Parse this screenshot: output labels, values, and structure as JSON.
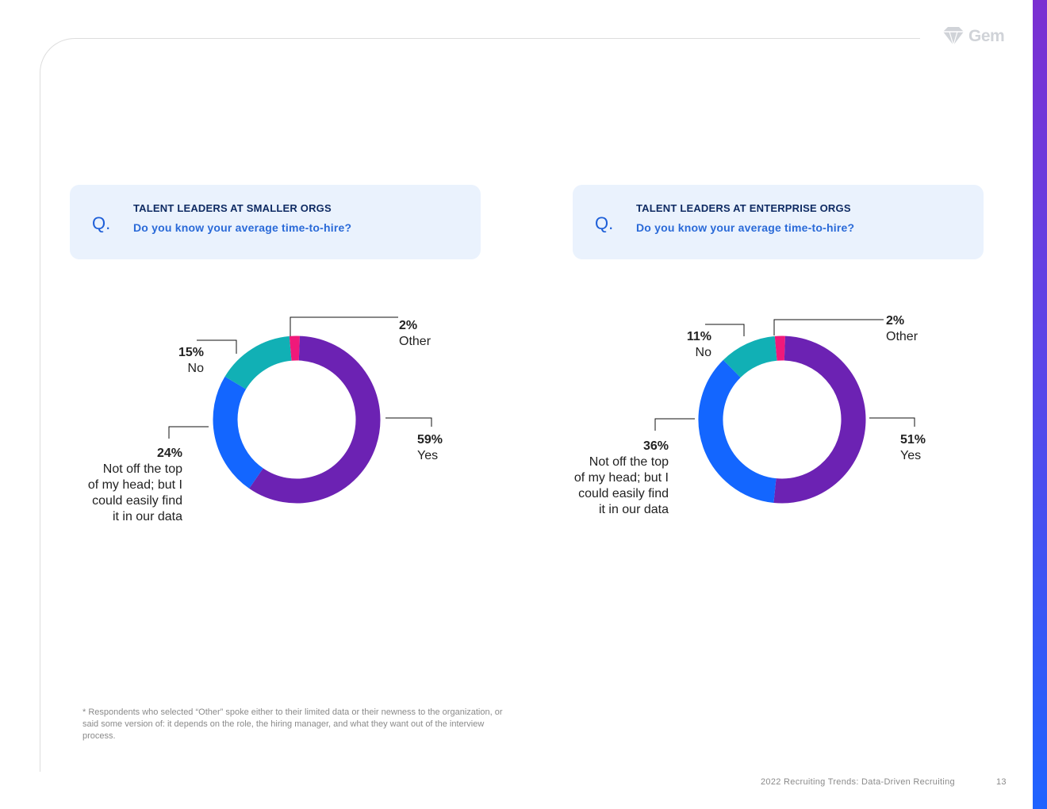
{
  "brand": {
    "logo_text": "Gem",
    "accent": "#7b2fd1",
    "accent2": "#1f63ff"
  },
  "questions": [
    {
      "mark": "Q.",
      "heading": "TALENT LEADERS AT SMALLER ORGS",
      "text": "Do you know your average time-to-hire?"
    },
    {
      "mark": "Q.",
      "heading": "TALENT LEADERS AT ENTERPRISE ORGS",
      "text": "Do you know your average time-to-hire?"
    }
  ],
  "chart_data": [
    {
      "type": "pie",
      "title": "Talent leaders at smaller orgs",
      "slices": [
        {
          "label": "Yes",
          "value": 59,
          "pct_label": "59%",
          "color": "#6c22b3"
        },
        {
          "label": "Not off the top of my head; but I could easily find it in our data",
          "label_lines": [
            "Not off the top",
            "of my head; but I",
            "could easily find",
            "it in our data"
          ],
          "value": 24,
          "pct_label": "24%",
          "color": "#1366ff"
        },
        {
          "label": "No",
          "value": 15,
          "pct_label": "15%",
          "color": "#11b0b5"
        },
        {
          "label": "Other",
          "value": 2,
          "pct_label": "2%",
          "color": "#f0197a"
        }
      ]
    },
    {
      "type": "pie",
      "title": "Talent leaders at enterprise orgs",
      "slices": [
        {
          "label": "Yes",
          "value": 51,
          "pct_label": "51%",
          "color": "#6c22b3"
        },
        {
          "label": "Not off the top of my head; but I could easily find it in our data",
          "label_lines": [
            "Not off the top",
            "of my head; but I",
            "could easily find",
            "it in our data"
          ],
          "value": 36,
          "pct_label": "36%",
          "color": "#1366ff"
        },
        {
          "label": "No",
          "value": 11,
          "pct_label": "11%",
          "color": "#11b0b5"
        },
        {
          "label": "Other",
          "value": 2,
          "pct_label": "2%",
          "color": "#f0197a"
        }
      ]
    }
  ],
  "footnote": "* Respondents who selected “Other” spoke either to their limited data or their newness to the organization, or said some version of: it depends on the role, the hiring manager, and what they want out of the interview process.",
  "footer": {
    "title": "2022 Recruiting Trends: Data-Driven Recruiting",
    "page": "13"
  }
}
